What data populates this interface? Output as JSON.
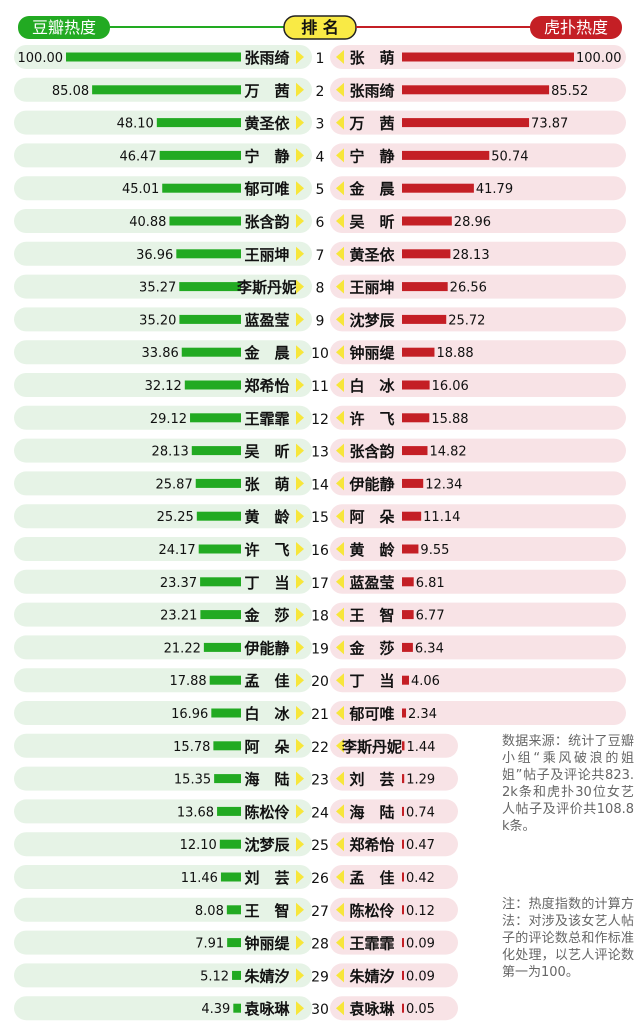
{
  "colors": {
    "green": "#22aa22",
    "red": "#c41f25",
    "row_left_bg": "#e6f3e6",
    "row_right_bg": "#f8e3e6",
    "rank_yellow": "#f7e63a",
    "header_yellow": "#f9ea45",
    "text": "#111111"
  },
  "header": {
    "left_label": "豆瓣热度",
    "center_label": "排 名",
    "right_label": "虎扑热度"
  },
  "notes": {
    "source": "数据来源：统计了豆瓣小组“乘风破浪的姐姐”帖子及评论共823.2k条和虎扑30位女艺人帖子及评价共108.8k条。",
    "method": "注：热度指数的计算方法：对涉及该女艺人帖子的评论数总和作标准化处理，以艺人评论数第一为100。"
  },
  "chart_data": {
    "type": "bar",
    "ranks": [
      1,
      2,
      3,
      4,
      5,
      6,
      7,
      8,
      9,
      10,
      11,
      12,
      13,
      14,
      15,
      16,
      17,
      18,
      19,
      20,
      21,
      22,
      23,
      24,
      25,
      26,
      27,
      28,
      29,
      30
    ],
    "series": [
      {
        "name": "豆瓣热度",
        "categories": [
          "张雨绮",
          "万　茜",
          "黄圣依",
          "宁　静",
          "郁可唯",
          "张含韵",
          "王丽坤",
          "李斯丹妮",
          "蓝盈莹",
          "金　晨",
          "郑希怡",
          "王霏霏",
          "吴　昕",
          "张　萌",
          "黄　龄",
          "许　飞",
          "丁　当",
          "金　莎",
          "伊能静",
          "孟　佳",
          "白　冰",
          "阿　朵",
          "海　陆",
          "陈松伶",
          "沈梦辰",
          "刘　芸",
          "王　智",
          "钟丽缇",
          "朱婧汐",
          "袁咏琳"
        ],
        "values": [
          "100.00",
          "85.08",
          "48.10",
          "46.47",
          "45.01",
          "40.88",
          "36.96",
          "35.27",
          "35.20",
          "33.86",
          "32.12",
          "29.12",
          "28.13",
          "25.87",
          "25.25",
          "24.17",
          "23.37",
          "23.21",
          "21.22",
          "17.88",
          "16.96",
          "15.78",
          "15.35",
          "13.68",
          "12.10",
          "11.46",
          "8.08",
          "7.91",
          "5.12",
          "4.39"
        ]
      },
      {
        "name": "虎扑热度",
        "categories": [
          "张　萌",
          "张雨绮",
          "万　茜",
          "宁　静",
          "金　晨",
          "吴　昕",
          "黄圣依",
          "王丽坤",
          "沈梦辰",
          "钟丽缇",
          "白　冰",
          "许　飞",
          "张含韵",
          "伊能静",
          "阿　朵",
          "黄　龄",
          "蓝盈莹",
          "王　智",
          "金　莎",
          "丁　当",
          "郁可唯",
          "李斯丹妮",
          "刘　芸",
          "海　陆",
          "郑希怡",
          "孟　佳",
          "陈松伶",
          "王霏霏",
          "朱婧汐",
          "袁咏琳"
        ],
        "values": [
          "100.00",
          "85.52",
          "73.87",
          "50.74",
          "41.79",
          "28.96",
          "28.13",
          "26.56",
          "25.72",
          "18.88",
          "16.06",
          "15.88",
          "14.82",
          "12.34",
          "11.14",
          "9.55",
          "6.81",
          "6.77",
          "6.34",
          "4.06",
          "2.34",
          "1.44",
          "1.29",
          "0.74",
          "0.47",
          "0.42",
          "0.12",
          "0.09",
          "0.09",
          "0.05"
        ]
      }
    ],
    "xlim": [
      0,
      100
    ]
  }
}
